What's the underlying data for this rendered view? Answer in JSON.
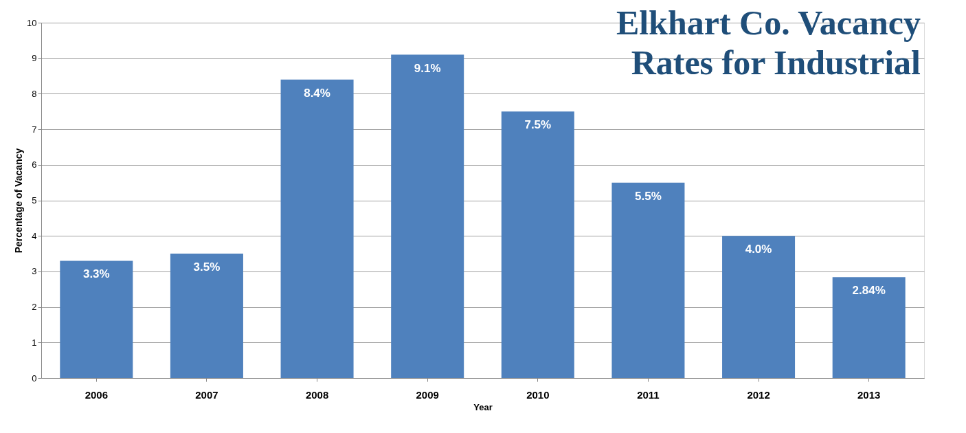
{
  "chart_data": {
    "type": "bar",
    "title": "Elkhart Co. Vacancy Rates for Industrial",
    "xlabel": "Year",
    "ylabel": "Percentage of Vacancy",
    "categories": [
      "2006",
      "2007",
      "2008",
      "2009",
      "2010",
      "2011",
      "2012",
      "2013"
    ],
    "values": [
      3.3,
      3.5,
      8.4,
      9.1,
      7.5,
      5.5,
      4.0,
      2.84
    ],
    "value_labels": [
      "3.3%",
      "3.5%",
      "8.4%",
      "9.1%",
      "7.5%",
      "5.5%",
      "4.0%",
      "2.84%"
    ],
    "color": "#4f81bd",
    "ylim": [
      0,
      10
    ],
    "yticks": [
      0,
      1,
      2,
      3,
      4,
      5,
      6,
      7,
      8,
      9,
      10
    ],
    "grid": "y"
  }
}
